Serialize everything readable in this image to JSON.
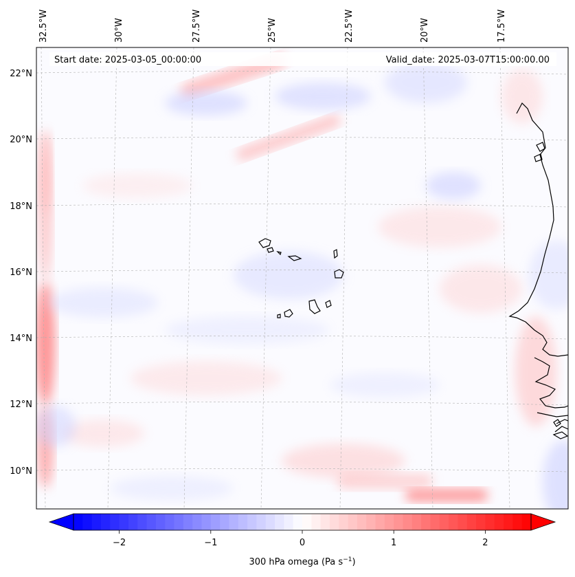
{
  "map": {
    "start_date": "Start date: 2025-03-05_00:00:00",
    "valid_date": "Valid_date: 2025-03-07T15:00:00.00",
    "variable": "300 hPa omega",
    "units_base": "Pa s",
    "units_exp": "−1",
    "lon_labels": [
      "32.5°W",
      "30°W",
      "27.5°W",
      "25°W",
      "22.5°W",
      "20°W",
      "17.5°W"
    ],
    "lat_labels": [
      "22°N",
      "20°N",
      "18°N",
      "16°N",
      "14°N",
      "12°N",
      "10°N"
    ],
    "colorbar": {
      "ticks": [
        "−2",
        "−1",
        "0",
        "1",
        "2"
      ],
      "tick_values": [
        -2,
        -1,
        0,
        1,
        2
      ],
      "range": [
        -2.5,
        2.5
      ],
      "low_color": "#0000ff",
      "mid_color": "#ffffff",
      "high_color": "#ff0000"
    },
    "coastline_color": "#000000",
    "gridline_color": "#b0b0b0"
  }
}
